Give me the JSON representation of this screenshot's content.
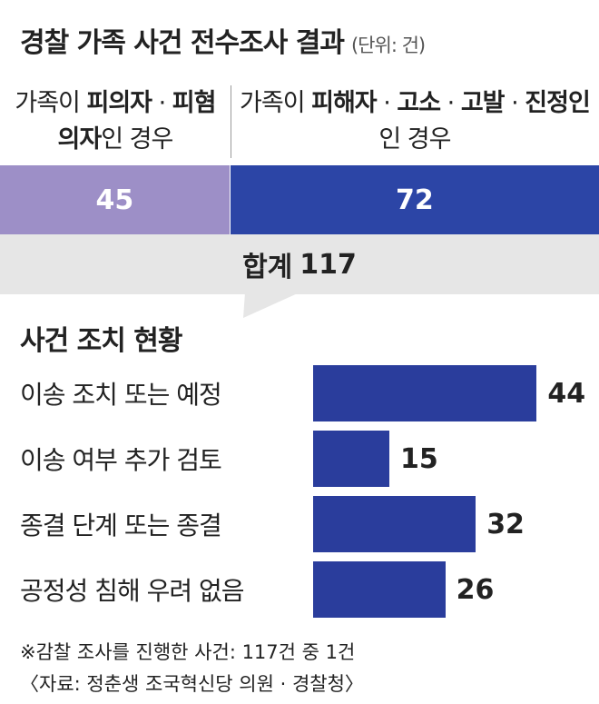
{
  "title": "경찰 가족 사건 전수조사 결과",
  "unit": "(단위: 건)",
  "chart_data": [
    {
      "type": "split-bar",
      "categories": [
        [
          {
            "text": "가족이 ",
            "bold": false
          },
          {
            "text": "피의자",
            "bold": true
          },
          {
            "text": " · ",
            "bold": false
          },
          {
            "text": "피혐의자",
            "bold": true
          },
          {
            "text": "인 경우",
            "bold": false
          }
        ],
        [
          {
            "text": "가족이 ",
            "bold": false
          },
          {
            "text": "피해자",
            "bold": true
          },
          {
            "text": " · ",
            "bold": false
          },
          {
            "text": "고소",
            "bold": true
          },
          {
            "text": " · ",
            "bold": false
          },
          {
            "text": "고발",
            "bold": true
          },
          {
            "text": " · ",
            "bold": false
          },
          {
            "text": "진정인",
            "bold": true
          },
          {
            "text": "인 경우",
            "bold": false
          }
        ]
      ],
      "values": [
        45,
        72
      ],
      "colors": [
        "#9d8fc7",
        "#2c45a6"
      ],
      "total_label": "합계",
      "total": 117
    },
    {
      "type": "hbar",
      "title": "사건 조치 현황",
      "categories": [
        "이송 조치 또는 예정",
        "이송 여부 추가 검토",
        "종결 단계 또는 종결",
        "공정성 침해 우려 없음"
      ],
      "values": [
        44,
        15,
        32,
        26
      ],
      "color": "#2a3d9c"
    }
  ],
  "footnote": "※감찰 조사를 진행한 사건: 117건 중 1건",
  "source": "〈자료: 정춘생 조국혁신당 의원 · 경찰청〉"
}
